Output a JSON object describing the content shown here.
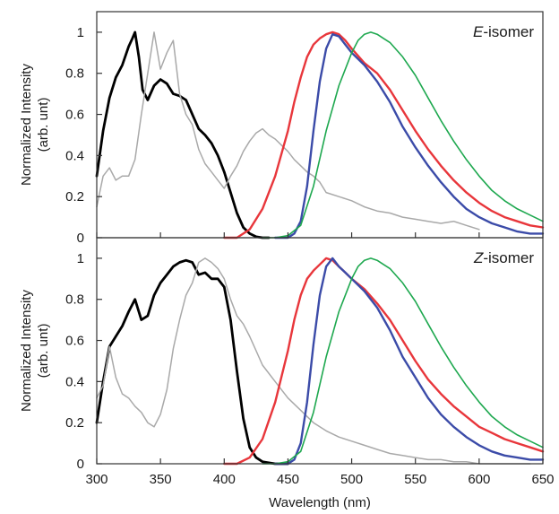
{
  "chart_data": [
    {
      "type": "line",
      "panel_label": {
        "prefix": "E",
        "suffix": "-isomer"
      },
      "ylabel_line1": "Normalized Intensity",
      "ylabel_line2": "(arb. unt)",
      "xlim": [
        300,
        650
      ],
      "ylim": [
        0,
        1.1
      ],
      "yticks": [
        "0",
        "0.2",
        "0.4",
        "0.6",
        "0.8",
        "1"
      ],
      "show_x_tick_labels": false,
      "grid": false,
      "series": [
        {
          "color": "#000000",
          "width": 2.8,
          "x": [
            300,
            305,
            310,
            315,
            320,
            325,
            328,
            330,
            333,
            336,
            340,
            345,
            350,
            355,
            360,
            365,
            370,
            375,
            380,
            385,
            390,
            395,
            400,
            405,
            410,
            415,
            420,
            425,
            430,
            435
          ],
          "y": [
            0.3,
            0.52,
            0.68,
            0.78,
            0.84,
            0.93,
            0.97,
            1.0,
            0.88,
            0.72,
            0.67,
            0.74,
            0.77,
            0.75,
            0.7,
            0.69,
            0.67,
            0.6,
            0.53,
            0.5,
            0.46,
            0.4,
            0.32,
            0.22,
            0.12,
            0.05,
            0.02,
            0.005,
            0.0,
            0.0
          ]
        },
        {
          "color": "#a9a9a9",
          "width": 1.5,
          "x": [
            300,
            305,
            310,
            315,
            320,
            325,
            330,
            335,
            340,
            345,
            350,
            355,
            360,
            365,
            370,
            375,
            380,
            385,
            390,
            395,
            400,
            405,
            410,
            415,
            420,
            425,
            430,
            435,
            440,
            445,
            450,
            455,
            460,
            465,
            470,
            475,
            480,
            490,
            500,
            510,
            520,
            530,
            540,
            550,
            560,
            570,
            580,
            590,
            600
          ],
          "y": [
            0.15,
            0.3,
            0.34,
            0.28,
            0.3,
            0.3,
            0.38,
            0.6,
            0.8,
            1.0,
            0.82,
            0.9,
            0.96,
            0.7,
            0.6,
            0.55,
            0.43,
            0.36,
            0.32,
            0.28,
            0.24,
            0.3,
            0.35,
            0.42,
            0.47,
            0.51,
            0.53,
            0.5,
            0.48,
            0.45,
            0.42,
            0.38,
            0.35,
            0.32,
            0.3,
            0.27,
            0.22,
            0.2,
            0.18,
            0.15,
            0.13,
            0.12,
            0.1,
            0.09,
            0.08,
            0.07,
            0.08,
            0.06,
            0.04
          ]
        },
        {
          "color": "#e8363b",
          "width": 2.4,
          "x": [
            400,
            410,
            420,
            430,
            440,
            450,
            455,
            460,
            465,
            470,
            475,
            480,
            485,
            490,
            495,
            500,
            510,
            520,
            530,
            540,
            550,
            560,
            570,
            580,
            590,
            600,
            610,
            620,
            630,
            640,
            650
          ],
          "y": [
            0.0,
            0.0,
            0.04,
            0.14,
            0.3,
            0.52,
            0.66,
            0.78,
            0.88,
            0.94,
            0.97,
            0.99,
            1.0,
            0.99,
            0.96,
            0.92,
            0.85,
            0.8,
            0.72,
            0.62,
            0.52,
            0.43,
            0.35,
            0.28,
            0.22,
            0.17,
            0.13,
            0.1,
            0.08,
            0.06,
            0.05
          ]
        },
        {
          "color": "#3b4ba8",
          "width": 2.4,
          "x": [
            440,
            450,
            455,
            460,
            465,
            470,
            475,
            480,
            485,
            490,
            495,
            500,
            510,
            520,
            530,
            540,
            550,
            560,
            570,
            580,
            590,
            600,
            610,
            620,
            630,
            640,
            650
          ],
          "y": [
            0.0,
            0.0,
            0.02,
            0.08,
            0.25,
            0.52,
            0.76,
            0.92,
            0.99,
            0.98,
            0.94,
            0.9,
            0.84,
            0.76,
            0.66,
            0.54,
            0.44,
            0.35,
            0.27,
            0.2,
            0.14,
            0.1,
            0.07,
            0.05,
            0.03,
            0.02,
            0.02
          ]
        },
        {
          "color": "#1ea84f",
          "width": 1.6,
          "x": [
            430,
            440,
            450,
            460,
            470,
            480,
            490,
            500,
            505,
            510,
            515,
            520,
            525,
            530,
            540,
            550,
            560,
            570,
            580,
            590,
            600,
            610,
            620,
            630,
            640,
            650
          ],
          "y": [
            0.0,
            0.0,
            0.01,
            0.06,
            0.25,
            0.52,
            0.74,
            0.9,
            0.96,
            0.99,
            1.0,
            0.99,
            0.97,
            0.95,
            0.88,
            0.79,
            0.68,
            0.57,
            0.47,
            0.38,
            0.3,
            0.23,
            0.18,
            0.14,
            0.11,
            0.08
          ]
        }
      ]
    },
    {
      "type": "line",
      "panel_label": {
        "prefix": "Z",
        "suffix": "-isomer"
      },
      "ylabel_line1": "Normalized Intensity",
      "ylabel_line2": "(arb. unt)",
      "xlabel": "Wavelength (nm)",
      "xlim": [
        300,
        650
      ],
      "ylim": [
        0,
        1.1
      ],
      "xticks": [
        "300",
        "350",
        "400",
        "450",
        "500",
        "550",
        "600",
        "650"
      ],
      "yticks": [
        "0",
        "0.2",
        "0.4",
        "0.6",
        "0.8",
        "1"
      ],
      "show_x_tick_labels": true,
      "grid": false,
      "series": [
        {
          "color": "#000000",
          "width": 2.8,
          "x": [
            300,
            305,
            310,
            315,
            320,
            325,
            330,
            335,
            340,
            345,
            350,
            355,
            360,
            365,
            370,
            375,
            380,
            385,
            390,
            395,
            400,
            405,
            410,
            415,
            420,
            425,
            430,
            440,
            450
          ],
          "y": [
            0.2,
            0.4,
            0.57,
            0.62,
            0.67,
            0.74,
            0.8,
            0.7,
            0.72,
            0.82,
            0.88,
            0.92,
            0.96,
            0.98,
            0.99,
            0.98,
            0.92,
            0.93,
            0.9,
            0.9,
            0.86,
            0.7,
            0.45,
            0.22,
            0.08,
            0.03,
            0.01,
            0.0,
            0.0
          ]
        },
        {
          "color": "#a9a9a9",
          "width": 1.5,
          "x": [
            300,
            305,
            310,
            315,
            320,
            325,
            330,
            335,
            340,
            345,
            350,
            355,
            360,
            365,
            370,
            375,
            380,
            385,
            390,
            395,
            400,
            405,
            410,
            415,
            420,
            425,
            430,
            440,
            450,
            460,
            470,
            480,
            490,
            500,
            510,
            520,
            530,
            540,
            550,
            560,
            570,
            580,
            590,
            600,
            620,
            640
          ],
          "y": [
            0.32,
            0.38,
            0.57,
            0.42,
            0.34,
            0.32,
            0.28,
            0.25,
            0.2,
            0.18,
            0.24,
            0.36,
            0.56,
            0.7,
            0.82,
            0.88,
            0.98,
            1.0,
            0.98,
            0.95,
            0.9,
            0.8,
            0.72,
            0.68,
            0.62,
            0.55,
            0.48,
            0.4,
            0.32,
            0.26,
            0.2,
            0.16,
            0.13,
            0.11,
            0.09,
            0.07,
            0.05,
            0.04,
            0.03,
            0.02,
            0.02,
            0.01,
            0.01,
            0.0,
            0.0,
            0.0
          ]
        },
        {
          "color": "#e8363b",
          "width": 2.4,
          "x": [
            400,
            410,
            420,
            430,
            440,
            450,
            455,
            460,
            465,
            470,
            475,
            480,
            485,
            490,
            495,
            500,
            510,
            520,
            530,
            540,
            550,
            560,
            570,
            580,
            590,
            600,
            610,
            620,
            630,
            640,
            650
          ],
          "y": [
            0.0,
            0.0,
            0.03,
            0.12,
            0.3,
            0.55,
            0.7,
            0.82,
            0.9,
            0.94,
            0.97,
            1.0,
            0.99,
            0.96,
            0.93,
            0.9,
            0.85,
            0.78,
            0.7,
            0.6,
            0.5,
            0.41,
            0.34,
            0.28,
            0.23,
            0.18,
            0.15,
            0.12,
            0.1,
            0.08,
            0.06
          ]
        },
        {
          "color": "#3b4ba8",
          "width": 2.4,
          "x": [
            440,
            450,
            455,
            460,
            465,
            470,
            475,
            480,
            485,
            490,
            495,
            500,
            510,
            520,
            530,
            540,
            550,
            560,
            570,
            580,
            590,
            600,
            610,
            620,
            630,
            640,
            650
          ],
          "y": [
            0.0,
            0.0,
            0.02,
            0.1,
            0.3,
            0.58,
            0.82,
            0.96,
            1.0,
            0.96,
            0.93,
            0.9,
            0.84,
            0.76,
            0.65,
            0.52,
            0.42,
            0.32,
            0.24,
            0.18,
            0.13,
            0.09,
            0.06,
            0.04,
            0.03,
            0.02,
            0.02
          ]
        },
        {
          "color": "#1ea84f",
          "width": 1.6,
          "x": [
            430,
            440,
            450,
            460,
            470,
            480,
            490,
            500,
            505,
            510,
            515,
            520,
            525,
            530,
            540,
            550,
            560,
            570,
            580,
            590,
            600,
            610,
            620,
            630,
            640,
            650
          ],
          "y": [
            0.0,
            0.0,
            0.01,
            0.06,
            0.25,
            0.52,
            0.74,
            0.9,
            0.96,
            0.99,
            1.0,
            0.99,
            0.97,
            0.95,
            0.88,
            0.79,
            0.68,
            0.57,
            0.47,
            0.38,
            0.3,
            0.23,
            0.18,
            0.14,
            0.11,
            0.08
          ]
        }
      ]
    }
  ]
}
